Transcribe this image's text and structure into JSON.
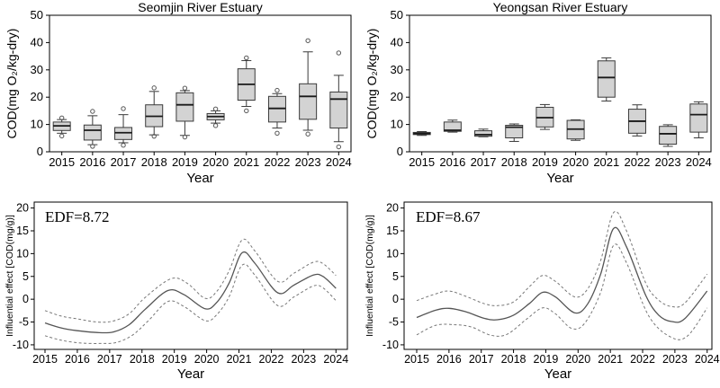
{
  "colors": {
    "box_fill": "#d3d3d3",
    "box_stroke": "#3a3a3a",
    "median": "#1a1a1a",
    "fit_line": "#555555",
    "ci_line": "#777777",
    "axis": "#000000",
    "outlier": "#555555",
    "text": "#000000"
  },
  "chart_data": [
    {
      "id": "seomjin-boxplot",
      "type": "boxplot",
      "title": "Seomjin River Estuary",
      "xlabel": "Year",
      "ylabel": "COD(mg O₂/kg-dry)",
      "ylim": [
        0,
        50
      ],
      "yticks": [
        0,
        10,
        20,
        30,
        40,
        50
      ],
      "categories": [
        "2015",
        "2016",
        "2017",
        "2018",
        "2019",
        "2020",
        "2021",
        "2022",
        "2023",
        "2024"
      ],
      "boxes": [
        {
          "year": "2015",
          "low": 6.8,
          "q1": 7.8,
          "median": 9.5,
          "q3": 10.9,
          "high": 11.8,
          "outliers": [
            12.4,
            5.8
          ]
        },
        {
          "year": "2016",
          "low": 2.6,
          "q1": 4.3,
          "median": 7.9,
          "q3": 9.8,
          "high": 13.2,
          "outliers": [
            14.8,
            2.0
          ]
        },
        {
          "year": "2017",
          "low": 3.3,
          "q1": 4.5,
          "median": 7.0,
          "q3": 8.9,
          "high": 13.6,
          "outliers": [
            15.8,
            2.4
          ]
        },
        {
          "year": "2018",
          "low": 6.2,
          "q1": 9.2,
          "median": 13.0,
          "q3": 17.2,
          "high": 22.1,
          "outliers": [
            23.4,
            5.7
          ]
        },
        {
          "year": "2019",
          "low": 6.0,
          "q1": 11.2,
          "median": 17.2,
          "q3": 21.6,
          "high": 22.4,
          "outliers": [
            23.3,
            5.4
          ]
        },
        {
          "year": "2020",
          "low": 10.5,
          "q1": 11.7,
          "median": 12.9,
          "q3": 14.0,
          "high": 15.0,
          "outliers": [
            15.7,
            9.6
          ]
        },
        {
          "year": "2021",
          "low": 16.6,
          "q1": 18.9,
          "median": 24.7,
          "q3": 30.4,
          "high": 33.4,
          "outliers": [
            34.4,
            15.0
          ]
        },
        {
          "year": "2022",
          "low": 8.7,
          "q1": 10.9,
          "median": 15.9,
          "q3": 20.3,
          "high": 21.3,
          "outliers": [
            22.5,
            6.8
          ]
        },
        {
          "year": "2023",
          "low": 7.9,
          "q1": 11.9,
          "median": 20.3,
          "q3": 24.9,
          "high": 36.6,
          "outliers": [
            40.7,
            6.5
          ]
        },
        {
          "year": "2024",
          "low": 3.7,
          "q1": 8.7,
          "median": 19.3,
          "q3": 21.9,
          "high": 28.0,
          "outliers": [
            36.2,
            1.8
          ]
        }
      ]
    },
    {
      "id": "yeongsan-boxplot",
      "type": "boxplot",
      "title": "Yeongsan River Estuary",
      "xlabel": "Year",
      "ylabel": "COD(mg O₂/kg-dry)",
      "ylim": [
        0,
        50
      ],
      "yticks": [
        0,
        10,
        20,
        30,
        40,
        50
      ],
      "categories": [
        "2015",
        "2016",
        "2017",
        "2018",
        "2019",
        "2020",
        "2021",
        "2022",
        "2023",
        "2024"
      ],
      "boxes": [
        {
          "year": "2015",
          "low": 6.0,
          "q1": 6.3,
          "median": 6.7,
          "q3": 7.1,
          "high": 7.4,
          "outliers": []
        },
        {
          "year": "2016",
          "low": 7.2,
          "q1": 7.5,
          "median": 7.9,
          "q3": 10.9,
          "high": 11.6,
          "outliers": []
        },
        {
          "year": "2017",
          "low": 5.5,
          "q1": 5.7,
          "median": 6.3,
          "q3": 7.7,
          "high": 8.3,
          "outliers": []
        },
        {
          "year": "2018",
          "low": 3.8,
          "q1": 5.1,
          "median": 9.0,
          "q3": 9.7,
          "high": 10.2,
          "outliers": []
        },
        {
          "year": "2019",
          "low": 8.2,
          "q1": 9.1,
          "median": 12.5,
          "q3": 16.3,
          "high": 17.3,
          "outliers": []
        },
        {
          "year": "2020",
          "low": 4.2,
          "q1": 4.7,
          "median": 8.3,
          "q3": 11.5,
          "high": 11.7,
          "outliers": []
        },
        {
          "year": "2021",
          "low": 18.6,
          "q1": 20.0,
          "median": 27.2,
          "q3": 33.3,
          "high": 34.4,
          "outliers": []
        },
        {
          "year": "2022",
          "low": 5.8,
          "q1": 6.8,
          "median": 11.2,
          "q3": 15.6,
          "high": 17.2,
          "outliers": []
        },
        {
          "year": "2023",
          "low": 2.0,
          "q1": 2.8,
          "median": 6.6,
          "q3": 9.3,
          "high": 9.9,
          "outliers": []
        },
        {
          "year": "2024",
          "low": 5.1,
          "q1": 7.2,
          "median": 13.6,
          "q3": 17.5,
          "high": 18.3,
          "outliers": []
        }
      ]
    },
    {
      "id": "seomjin-gam",
      "type": "gam",
      "annotation": "EDF=8.72",
      "xlabel": "Year",
      "ylabel": "Influential effect [COD(mg/g)]",
      "ylim": [
        -10,
        20
      ],
      "yticks": [
        -10,
        -5,
        0,
        5,
        10,
        15,
        20
      ],
      "xticks": [
        2015,
        2016,
        2017,
        2018,
        2019,
        2020,
        2021,
        2022,
        2023,
        2024
      ],
      "series": [
        {
          "name": "fit",
          "style": "solid",
          "points": [
            [
              2015,
              -5.2
            ],
            [
              2015.5,
              -6.3
            ],
            [
              2016,
              -6.9
            ],
            [
              2016.6,
              -7.3
            ],
            [
              2017.1,
              -7.2
            ],
            [
              2017.6,
              -5.6
            ],
            [
              2018.1,
              -2.2
            ],
            [
              2018.8,
              1.9
            ],
            [
              2019.3,
              1.0
            ],
            [
              2019.95,
              -2.1
            ],
            [
              2020.3,
              -0.8
            ],
            [
              2020.7,
              3.6
            ],
            [
              2021.1,
              10.2
            ],
            [
              2021.5,
              7.8
            ],
            [
              2022.2,
              1.4
            ],
            [
              2022.7,
              3.1
            ],
            [
              2023.3,
              5.3
            ],
            [
              2023.6,
              5.0
            ],
            [
              2024,
              2.4
            ]
          ]
        },
        {
          "name": "upper-ci",
          "style": "dashed",
          "points": [
            [
              2015,
              -2.5
            ],
            [
              2015.5,
              -3.7
            ],
            [
              2016,
              -4.3
            ],
            [
              2016.6,
              -5.0
            ],
            [
              2017.1,
              -4.8
            ],
            [
              2017.6,
              -3.2
            ],
            [
              2018.1,
              0.4
            ],
            [
              2018.9,
              4.5
            ],
            [
              2019.4,
              3.5
            ],
            [
              2019.95,
              0.2
            ],
            [
              2020.3,
              1.6
            ],
            [
              2020.7,
              6.3
            ],
            [
              2021.1,
              13.0
            ],
            [
              2021.5,
              10.5
            ],
            [
              2022.2,
              3.9
            ],
            [
              2022.7,
              5.7
            ],
            [
              2023.3,
              8.1
            ],
            [
              2023.6,
              7.8
            ],
            [
              2024,
              5.2
            ]
          ]
        },
        {
          "name": "lower-ci",
          "style": "dashed",
          "points": [
            [
              2015,
              -8.0
            ],
            [
              2015.5,
              -9.0
            ],
            [
              2016.1,
              -9.6
            ],
            [
              2016.7,
              -9.7
            ],
            [
              2017.2,
              -9.5
            ],
            [
              2017.7,
              -7.9
            ],
            [
              2018.2,
              -4.7
            ],
            [
              2018.8,
              -0.5
            ],
            [
              2019.3,
              -1.6
            ],
            [
              2019.95,
              -4.7
            ],
            [
              2020.3,
              -3.5
            ],
            [
              2020.7,
              0.6
            ],
            [
              2021.1,
              7.5
            ],
            [
              2021.5,
              5.2
            ],
            [
              2022.2,
              -1.4
            ],
            [
              2022.7,
              0.5
            ],
            [
              2023.3,
              2.9
            ],
            [
              2023.6,
              2.5
            ],
            [
              2024,
              -0.3
            ]
          ]
        }
      ]
    },
    {
      "id": "yeongsan-gam",
      "type": "gam",
      "annotation": "EDF=8.67",
      "xlabel": "Year",
      "ylabel": "Influential effect [COD(mg/g)]",
      "ylim": [
        -10,
        20
      ],
      "yticks": [
        -10,
        -5,
        0,
        5,
        10,
        15,
        20
      ],
      "xticks": [
        2015,
        2016,
        2017,
        2018,
        2019,
        2020,
        2021,
        2022,
        2023,
        2024
      ],
      "series": [
        {
          "name": "fit",
          "style": "solid",
          "points": [
            [
              2015,
              -4.0
            ],
            [
              2015.6,
              -2.4
            ],
            [
              2016,
              -2.0
            ],
            [
              2016.5,
              -2.7
            ],
            [
              2017.1,
              -4.2
            ],
            [
              2017.5,
              -4.5
            ],
            [
              2018,
              -3.5
            ],
            [
              2018.5,
              -0.9
            ],
            [
              2018.9,
              1.5
            ],
            [
              2019.3,
              0.5
            ],
            [
              2019.9,
              -3.0
            ],
            [
              2020.3,
              -1.0
            ],
            [
              2020.7,
              5.5
            ],
            [
              2021.1,
              15.5
            ],
            [
              2021.5,
              11.5
            ],
            [
              2022.1,
              0.8
            ],
            [
              2022.5,
              -3.5
            ],
            [
              2022.9,
              -4.9
            ],
            [
              2023.3,
              -4.3
            ],
            [
              2024,
              1.8
            ]
          ]
        },
        {
          "name": "upper-ci",
          "style": "dashed",
          "points": [
            [
              2015,
              -0.3
            ],
            [
              2015.6,
              1.2
            ],
            [
              2016,
              1.8
            ],
            [
              2016.5,
              0.7
            ],
            [
              2017.1,
              -1.0
            ],
            [
              2017.5,
              -1.4
            ],
            [
              2018,
              -0.6
            ],
            [
              2018.5,
              2.8
            ],
            [
              2018.9,
              5.2
            ],
            [
              2019.3,
              3.9
            ],
            [
              2019.9,
              0.5
            ],
            [
              2020.3,
              2.3
            ],
            [
              2020.7,
              8.5
            ],
            [
              2021.1,
              19.0
            ],
            [
              2021.5,
              15.0
            ],
            [
              2022.1,
              3.5
            ],
            [
              2022.5,
              -0.2
            ],
            [
              2022.9,
              -1.6
            ],
            [
              2023.3,
              -0.9
            ],
            [
              2024,
              5.5
            ]
          ]
        },
        {
          "name": "lower-ci",
          "style": "dashed",
          "points": [
            [
              2015,
              -7.8
            ],
            [
              2015.6,
              -5.7
            ],
            [
              2016.2,
              -5.6
            ],
            [
              2016.7,
              -6.1
            ],
            [
              2017.3,
              -7.9
            ],
            [
              2017.8,
              -7.7
            ],
            [
              2018.4,
              -4.4
            ],
            [
              2018.9,
              -1.9
            ],
            [
              2019.3,
              -3.2
            ],
            [
              2019.8,
              -6.4
            ],
            [
              2020.2,
              -5.3
            ],
            [
              2020.7,
              1.5
            ],
            [
              2021.1,
              11.8
            ],
            [
              2021.5,
              8.0
            ],
            [
              2022.2,
              -3.8
            ],
            [
              2022.9,
              -8.4
            ],
            [
              2023.4,
              -8.0
            ],
            [
              2024,
              -1.9
            ]
          ]
        }
      ]
    }
  ]
}
